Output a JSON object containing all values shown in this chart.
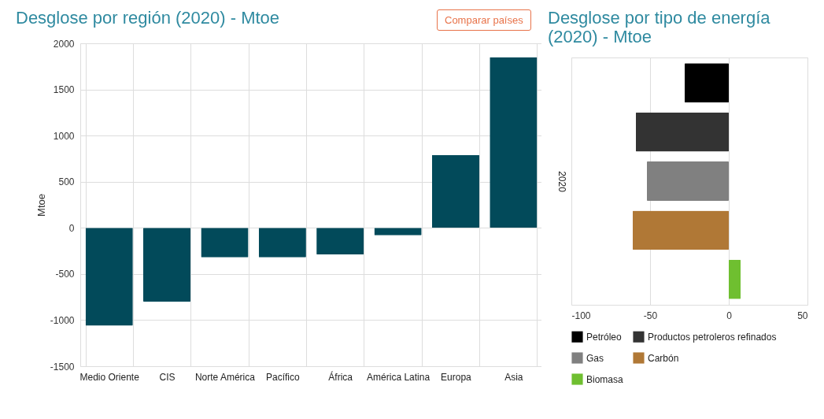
{
  "chart_data": [
    {
      "type": "bar",
      "title": "Desglose por región (2020) - Mtoe",
      "ylabel": "Mtoe",
      "categories": [
        "Medio Oriente",
        "CIS",
        "Norte América",
        "Pacífico",
        "África",
        "América Latina",
        "Europa",
        "Asia"
      ],
      "values": [
        -1060,
        -800,
        -320,
        -320,
        -290,
        -80,
        790,
        1850
      ],
      "color": "#024a5a",
      "ylim": [
        -1500,
        2000
      ],
      "yticks": [
        -1500,
        -1000,
        -500,
        0,
        500,
        1000,
        1500,
        2000
      ],
      "grid": true,
      "annotations": [
        "Comparar países"
      ]
    },
    {
      "type": "bar",
      "title": "Desglose por tipo de energía (2020) - Mtoe",
      "orientation": "horizontal",
      "categories": [
        "2020"
      ],
      "series": [
        {
          "name": "Petróleo",
          "color": "#000000",
          "values": [
            -28
          ]
        },
        {
          "name": "Productos petroleros refinados",
          "color": "#333333",
          "values": [
            -59
          ]
        },
        {
          "name": "Gas",
          "color": "#808080",
          "values": [
            -52
          ]
        },
        {
          "name": "Carbón",
          "color": "#b07836",
          "values": [
            -61
          ]
        },
        {
          "name": "Biomasa",
          "color": "#6fbf30",
          "values": [
            7.5
          ]
        }
      ],
      "xlim": [
        -100,
        50
      ],
      "xticks": [
        -100,
        -50,
        0,
        50
      ],
      "grid": "x",
      "legend": "bottom"
    }
  ]
}
